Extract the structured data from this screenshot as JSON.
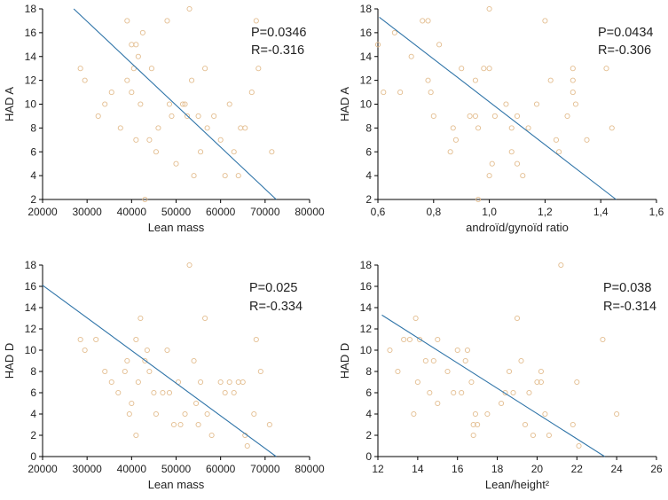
{
  "colors": {
    "point": "#e3bd8f",
    "fit_line": "#2f74a8",
    "axis": "#000000"
  },
  "chart_data": [
    {
      "type": "scatter",
      "id": "lean-mass-hada",
      "xlabel": "Lean mass",
      "ylabel": "HAD A",
      "xlim": [
        20000,
        80000
      ],
      "ylim": [
        2,
        18
      ],
      "xticks": [
        20000,
        30000,
        40000,
        50000,
        60000,
        70000,
        80000
      ],
      "xtick_labels": [
        "20000",
        "30000",
        "40000",
        "50000",
        "60000",
        "70000",
        "80000"
      ],
      "yticks": [
        2,
        4,
        6,
        8,
        10,
        12,
        14,
        16,
        18
      ],
      "ytick_labels": [
        "2",
        "4",
        "6",
        "8",
        "10",
        "12",
        "14",
        "16",
        "18"
      ],
      "annotations": [
        "P=0.0346",
        "R=-0.316"
      ],
      "fit_line": [
        [
          27000,
          18
        ],
        [
          72500,
          2
        ]
      ],
      "points": [
        [
          28500,
          13
        ],
        [
          29500,
          12
        ],
        [
          32500,
          9
        ],
        [
          34000,
          10
        ],
        [
          35500,
          11
        ],
        [
          37500,
          8
        ],
        [
          39000,
          17
        ],
        [
          39000,
          12
        ],
        [
          40000,
          11
        ],
        [
          40000,
          15
        ],
        [
          40500,
          13
        ],
        [
          41000,
          15
        ],
        [
          41000,
          7
        ],
        [
          41500,
          14
        ],
        [
          42000,
          10
        ],
        [
          42500,
          16
        ],
        [
          43000,
          2
        ],
        [
          44000,
          7
        ],
        [
          44500,
          13
        ],
        [
          45500,
          6
        ],
        [
          46000,
          8
        ],
        [
          48000,
          17
        ],
        [
          48500,
          10
        ],
        [
          49000,
          9
        ],
        [
          50000,
          5
        ],
        [
          51500,
          10
        ],
        [
          52000,
          10
        ],
        [
          52500,
          9
        ],
        [
          53000,
          18
        ],
        [
          53500,
          12
        ],
        [
          54000,
          4
        ],
        [
          55000,
          9
        ],
        [
          55500,
          6
        ],
        [
          56500,
          13
        ],
        [
          57000,
          8
        ],
        [
          58500,
          9
        ],
        [
          60000,
          7
        ],
        [
          61000,
          4
        ],
        [
          62000,
          10
        ],
        [
          63000,
          6
        ],
        [
          64000,
          4
        ],
        [
          64500,
          8
        ],
        [
          65500,
          8
        ],
        [
          67000,
          11
        ],
        [
          68000,
          17
        ],
        [
          68500,
          13
        ],
        [
          71500,
          6
        ]
      ]
    },
    {
      "type": "scatter",
      "id": "android-gynoid-hada",
      "xlabel": "androïd/gynoïd ratio",
      "ylabel": "HAD A",
      "xlim": [
        0.6,
        1.6
      ],
      "ylim": [
        2,
        18
      ],
      "xticks": [
        0.6,
        0.8,
        1.0,
        1.2,
        1.4,
        1.6
      ],
      "xtick_labels": [
        "0,6",
        "0,8",
        "1,0",
        "1,2",
        "1,4",
        "1,6"
      ],
      "yticks": [
        2,
        4,
        6,
        8,
        10,
        12,
        14,
        16,
        18
      ],
      "ytick_labels": [
        "2",
        "4",
        "6",
        "8",
        "10",
        "12",
        "14",
        "16",
        "18"
      ],
      "annotations": [
        "P=0.0434",
        "R=-0.306"
      ],
      "fit_line": [
        [
          0.605,
          17.3
        ],
        [
          1.455,
          2
        ]
      ],
      "points": [
        [
          0.6,
          15
        ],
        [
          0.62,
          11
        ],
        [
          0.66,
          16
        ],
        [
          0.68,
          11
        ],
        [
          0.72,
          14
        ],
        [
          0.76,
          17
        ],
        [
          0.78,
          17
        ],
        [
          0.78,
          12
        ],
        [
          0.79,
          11
        ],
        [
          0.8,
          9
        ],
        [
          0.82,
          15
        ],
        [
          0.86,
          6
        ],
        [
          0.87,
          8
        ],
        [
          0.88,
          7
        ],
        [
          0.9,
          13
        ],
        [
          0.93,
          9
        ],
        [
          0.95,
          12
        ],
        [
          0.95,
          9
        ],
        [
          0.96,
          8
        ],
        [
          0.96,
          2
        ],
        [
          0.98,
          13
        ],
        [
          1.0,
          4
        ],
        [
          1.0,
          18
        ],
        [
          1.0,
          13
        ],
        [
          1.01,
          5
        ],
        [
          1.02,
          9
        ],
        [
          1.06,
          10
        ],
        [
          1.08,
          8
        ],
        [
          1.08,
          6
        ],
        [
          1.1,
          5
        ],
        [
          1.1,
          9
        ],
        [
          1.12,
          4
        ],
        [
          1.14,
          8
        ],
        [
          1.17,
          10
        ],
        [
          1.2,
          17
        ],
        [
          1.22,
          12
        ],
        [
          1.24,
          7
        ],
        [
          1.25,
          6
        ],
        [
          1.28,
          9
        ],
        [
          1.3,
          13
        ],
        [
          1.3,
          12
        ],
        [
          1.3,
          11
        ],
        [
          1.31,
          10
        ],
        [
          1.35,
          7
        ],
        [
          1.42,
          13
        ],
        [
          1.44,
          8
        ]
      ]
    },
    {
      "type": "scatter",
      "id": "lean-mass-hadd",
      "xlabel": "Lean mass",
      "ylabel": "HAD D",
      "xlim": [
        20000,
        80000
      ],
      "ylim": [
        0,
        18
      ],
      "xticks": [
        20000,
        30000,
        40000,
        50000,
        60000,
        70000,
        80000
      ],
      "xtick_labels": [
        "20000",
        "30000",
        "40000",
        "50000",
        "60000",
        "70000",
        "80000"
      ],
      "yticks": [
        0,
        2,
        4,
        6,
        8,
        10,
        12,
        14,
        16,
        18
      ],
      "ytick_labels": [
        "0",
        "2",
        "4",
        "6",
        "8",
        "10",
        "12",
        "14",
        "16",
        "18"
      ],
      "annotations": [
        "P=0.025",
        "R=-0.334"
      ],
      "fit_line": [
        [
          20000,
          16.1
        ],
        [
          72500,
          0
        ]
      ],
      "points": [
        [
          28500,
          11
        ],
        [
          29500,
          10
        ],
        [
          32000,
          11
        ],
        [
          34000,
          8
        ],
        [
          35500,
          7
        ],
        [
          37000,
          6
        ],
        [
          38500,
          8
        ],
        [
          39000,
          9
        ],
        [
          39500,
          4
        ],
        [
          40000,
          5
        ],
        [
          41000,
          11
        ],
        [
          41000,
          2
        ],
        [
          41500,
          7
        ],
        [
          42000,
          13
        ],
        [
          43000,
          9
        ],
        [
          43500,
          10
        ],
        [
          44000,
          8
        ],
        [
          45000,
          6
        ],
        [
          45500,
          4
        ],
        [
          47000,
          6
        ],
        [
          48000,
          10
        ],
        [
          48500,
          6
        ],
        [
          49500,
          3
        ],
        [
          50500,
          7
        ],
        [
          51000,
          3
        ],
        [
          52000,
          4
        ],
        [
          53000,
          18
        ],
        [
          54000,
          9
        ],
        [
          54500,
          5
        ],
        [
          55000,
          3
        ],
        [
          55500,
          7
        ],
        [
          56500,
          13
        ],
        [
          57000,
          4
        ],
        [
          58000,
          2
        ],
        [
          60000,
          7
        ],
        [
          61000,
          6
        ],
        [
          62000,
          7
        ],
        [
          63000,
          6
        ],
        [
          64000,
          7
        ],
        [
          65000,
          7
        ],
        [
          65500,
          2
        ],
        [
          66000,
          1
        ],
        [
          67500,
          4
        ],
        [
          68000,
          11
        ],
        [
          69000,
          8
        ],
        [
          71000,
          3
        ]
      ]
    },
    {
      "type": "scatter",
      "id": "lean-height-hadd",
      "xlabel": "Lean/height²",
      "ylabel": "HAD D",
      "xlim": [
        12,
        26
      ],
      "ylim": [
        0,
        18
      ],
      "xticks": [
        12,
        14,
        16,
        18,
        20,
        22,
        24,
        26
      ],
      "xtick_labels": [
        "12",
        "14",
        "16",
        "18",
        "20",
        "22",
        "24",
        "26"
      ],
      "yticks": [
        0,
        2,
        4,
        6,
        8,
        10,
        12,
        14,
        16,
        18
      ],
      "ytick_labels": [
        "0",
        "2",
        "4",
        "6",
        "8",
        "10",
        "12",
        "14",
        "16",
        "18"
      ],
      "annotations": [
        "P=0.038",
        "R=-0.314"
      ],
      "fit_line": [
        [
          12.2,
          13.3
        ],
        [
          23.4,
          0
        ]
      ],
      "points": [
        [
          12.6,
          10
        ],
        [
          13.0,
          8
        ],
        [
          13.3,
          11
        ],
        [
          13.6,
          11
        ],
        [
          13.8,
          4
        ],
        [
          13.9,
          13
        ],
        [
          14.0,
          7
        ],
        [
          14.1,
          11
        ],
        [
          14.4,
          9
        ],
        [
          14.6,
          6
        ],
        [
          14.8,
          9
        ],
        [
          15.0,
          11
        ],
        [
          15.0,
          5
        ],
        [
          15.5,
          8
        ],
        [
          15.8,
          6
        ],
        [
          16.0,
          10
        ],
        [
          16.2,
          6
        ],
        [
          16.4,
          9
        ],
        [
          16.5,
          10
        ],
        [
          16.7,
          7
        ],
        [
          16.8,
          3
        ],
        [
          16.8,
          2
        ],
        [
          16.9,
          4
        ],
        [
          17.0,
          3
        ],
        [
          17.5,
          4
        ],
        [
          18.2,
          5
        ],
        [
          18.4,
          6
        ],
        [
          18.6,
          8
        ],
        [
          18.8,
          6
        ],
        [
          19.0,
          13
        ],
        [
          19.2,
          9
        ],
        [
          19.4,
          3
        ],
        [
          19.6,
          6
        ],
        [
          19.8,
          2
        ],
        [
          20.0,
          7
        ],
        [
          20.2,
          8
        ],
        [
          20.2,
          7
        ],
        [
          20.4,
          4
        ],
        [
          20.6,
          2
        ],
        [
          21.2,
          18
        ],
        [
          21.8,
          3
        ],
        [
          22.0,
          7
        ],
        [
          22.1,
          1
        ],
        [
          23.3,
          11
        ],
        [
          24.0,
          4
        ]
      ]
    }
  ]
}
